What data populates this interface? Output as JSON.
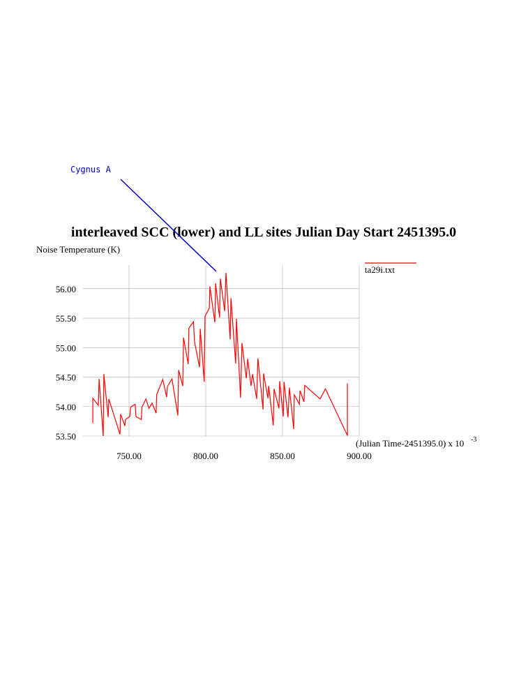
{
  "chart_data": {
    "type": "line",
    "title": "interleaved SCC (lower) and LL sites Julian Day Start 2451395.0",
    "ylabel": "Noise Temperature (K)",
    "xlabel": "(Julian Time-2451395.0) x 10",
    "xlabel_exponent": "-3",
    "annotation": "Cygnus A",
    "grid": true,
    "xlim": [
      720,
      900
    ],
    "ylim": [
      53.5,
      56.4
    ],
    "xticks": [
      {
        "value": 750,
        "label": "750.00"
      },
      {
        "value": 800,
        "label": "800.00"
      },
      {
        "value": 850,
        "label": "850.00"
      },
      {
        "value": 900,
        "label": "900.00"
      }
    ],
    "yticks": [
      {
        "value": 53.5,
        "label": "53.50"
      },
      {
        "value": 54,
        "label": "54.00"
      },
      {
        "value": 54.5,
        "label": "54.50"
      },
      {
        "value": 55,
        "label": "55.00"
      },
      {
        "value": 55.5,
        "label": "55.50"
      },
      {
        "value": 56,
        "label": "56.00"
      }
    ],
    "series": [
      {
        "name": "ta29i.txt",
        "color": "#ff0000",
        "x": [
          726.4,
          726.4,
          730.0,
          730.5,
          733.2,
          733.6,
          736.4,
          736.8,
          744.1,
          744.5,
          747.3,
          747.7,
          750.5,
          751.0,
          754.0,
          754.5,
          758.0,
          758.4,
          761.0,
          763.0,
          765.0,
          767.7,
          768.0,
          772.0,
          774.5,
          775.0,
          778.0,
          781.8,
          782.3,
          785.0,
          785.5,
          788.6,
          789.0,
          792.0,
          792.7,
          795.9,
          796.4,
          799.0,
          799.5,
          802.3,
          802.7,
          805.9,
          806.4,
          809.0,
          809.5,
          812.3,
          813.2,
          815.9,
          816.4,
          819.5,
          820.0,
          822.7,
          823.6,
          826.4,
          827.3,
          829.5,
          830.5,
          833.2,
          834.0,
          837.3,
          837.7,
          840.5,
          841.0,
          844.0,
          844.5,
          847.7,
          848.2,
          850.5,
          851.0,
          853.6,
          854.5,
          857.3,
          857.7,
          861.0,
          861.4,
          864.0,
          864.5,
          874.5,
          878.0,
          892.3,
          892.3
        ],
        "values": [
          53.72,
          54.14,
          54.02,
          54.47,
          53.5,
          54.55,
          53.82,
          54.13,
          53.53,
          53.87,
          53.67,
          53.78,
          53.83,
          53.99,
          54.04,
          53.83,
          53.78,
          53.99,
          54.13,
          53.97,
          54.06,
          53.89,
          54.2,
          54.46,
          54.16,
          54.34,
          54.47,
          53.85,
          54.62,
          54.35,
          55.17,
          54.72,
          55.33,
          55.44,
          55.1,
          54.67,
          55.32,
          54.42,
          55.53,
          55.67,
          56.04,
          55.43,
          56.09,
          55.51,
          56.17,
          55.62,
          56.27,
          55.14,
          55.84,
          54.73,
          55.49,
          54.15,
          55.08,
          54.48,
          54.81,
          54.35,
          54.55,
          54.13,
          54.82,
          53.95,
          54.56,
          54.14,
          54.35,
          53.68,
          54.3,
          53.97,
          54.43,
          53.83,
          54.42,
          53.82,
          54.32,
          53.62,
          54.2,
          54.04,
          54.27,
          54.08,
          54.36,
          54.13,
          54.3,
          53.51,
          54.39
        ]
      }
    ]
  }
}
